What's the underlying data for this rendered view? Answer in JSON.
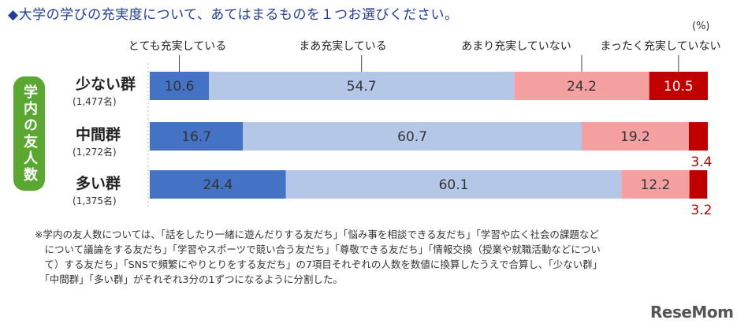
{
  "title": "◆大学の学びの充実度について、あてはまるものを１つお選びください。",
  "unit": "(%)",
  "side_label": "学内の友人数",
  "note_lines": [
    "※学内の友人数については、「話をしたり一緒に遊んだりする友だち」「悩み事を相談できる友だち」「学習や広く社会の課題など",
    "　について議論をする友だち」「学習やスポーツで競い合う友だち」「尊敬できる友だち」「情報交換（授業や就職活動などについ",
    "　て）する友だち」「SNSで頻繁にやりとりをする友だち」の7項目それぞれの人数を数値に換算したうえで合算し、「少ない群」",
    "　「中間群」「多い群」がそれぞれ3分の1ずつになるように分割した。"
  ],
  "logo": "ReseMom",
  "chart_data": {
    "type": "bar",
    "stacked": true,
    "orientation": "horizontal",
    "categories": [
      {
        "name": "少ない群",
        "count": "(1,477名)"
      },
      {
        "name": "中間群",
        "count": "(1,272名)"
      },
      {
        "name": "多い群",
        "count": "(1,375名)"
      }
    ],
    "series": [
      {
        "name": "とても充実している",
        "color": "#4472c4",
        "values": [
          10.6,
          16.7,
          24.4
        ],
        "labels": [
          "10.6",
          "16.7",
          "24.4"
        ]
      },
      {
        "name": "まあ充実している",
        "color": "#b4c7e7",
        "values": [
          54.7,
          60.7,
          60.1
        ],
        "labels": [
          "54.7",
          "60.7",
          "60.1"
        ]
      },
      {
        "name": "あまり充実していない",
        "color": "#f4a0a0",
        "values": [
          24.2,
          19.2,
          12.2
        ],
        "labels": [
          "24.2",
          "19.2",
          "12.2"
        ]
      },
      {
        "name": "まったく充実していない",
        "color": "#c00000",
        "values": [
          10.5,
          3.4,
          3.2
        ],
        "labels": [
          "10.5",
          "3.4",
          "3.2"
        ]
      }
    ],
    "xlim": [
      0,
      100
    ],
    "legend": "top"
  }
}
